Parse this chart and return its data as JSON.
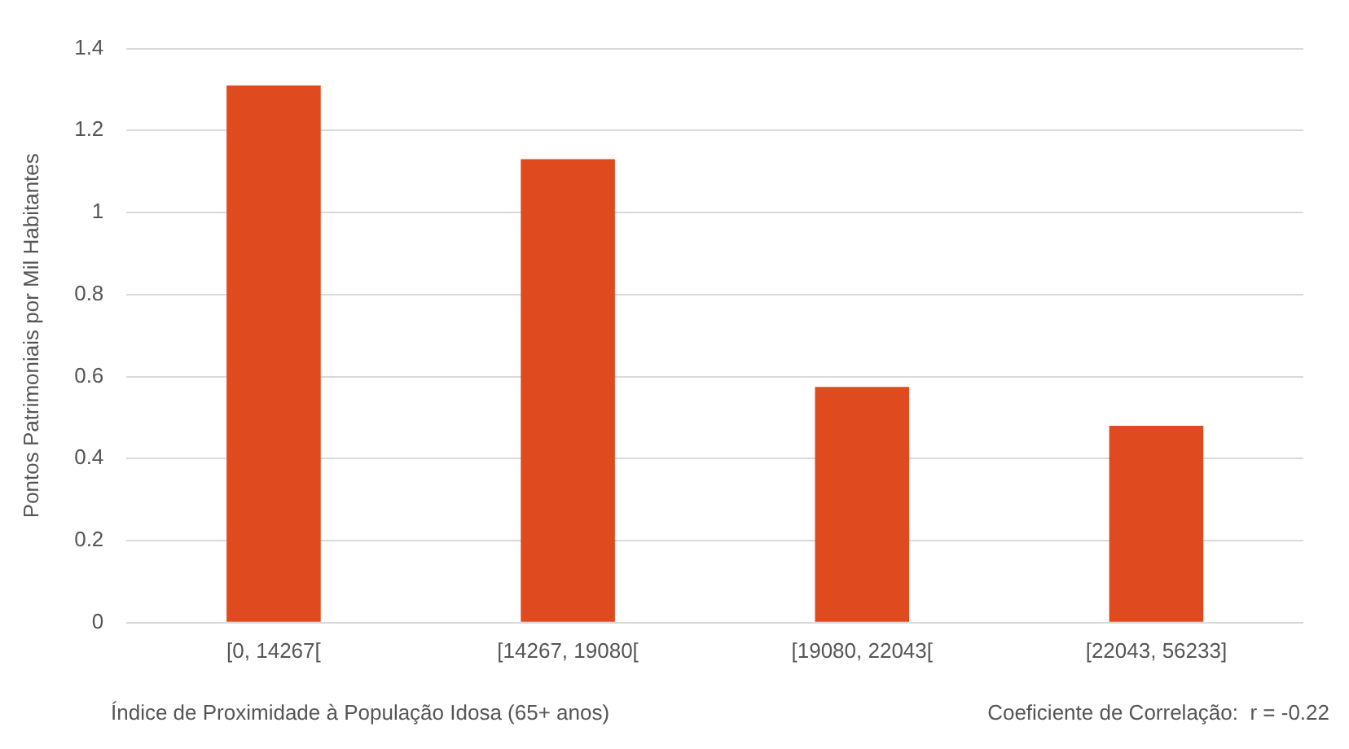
{
  "chart_data": {
    "type": "bar",
    "xlabel": "Índice de Proximidade à População Idosa (65+ anos)",
    "ylabel": "Pontos Patrimoniais por Mil Habitantes",
    "categories": [
      "[0, 14267[",
      "[14267, 19080[",
      "[19080, 22043[",
      "[22043, 56233]"
    ],
    "values": [
      1.31,
      1.13,
      0.575,
      0.48
    ],
    "color": "#e04a1f",
    "ylim": [
      0,
      1.4
    ],
    "yticks": [
      0,
      0.2,
      0.4,
      0.6,
      0.8,
      1,
      1.2,
      1.4
    ],
    "grid": "y",
    "annotations": [
      "Coeficiente de Correlação:  r = -0.22"
    ]
  }
}
